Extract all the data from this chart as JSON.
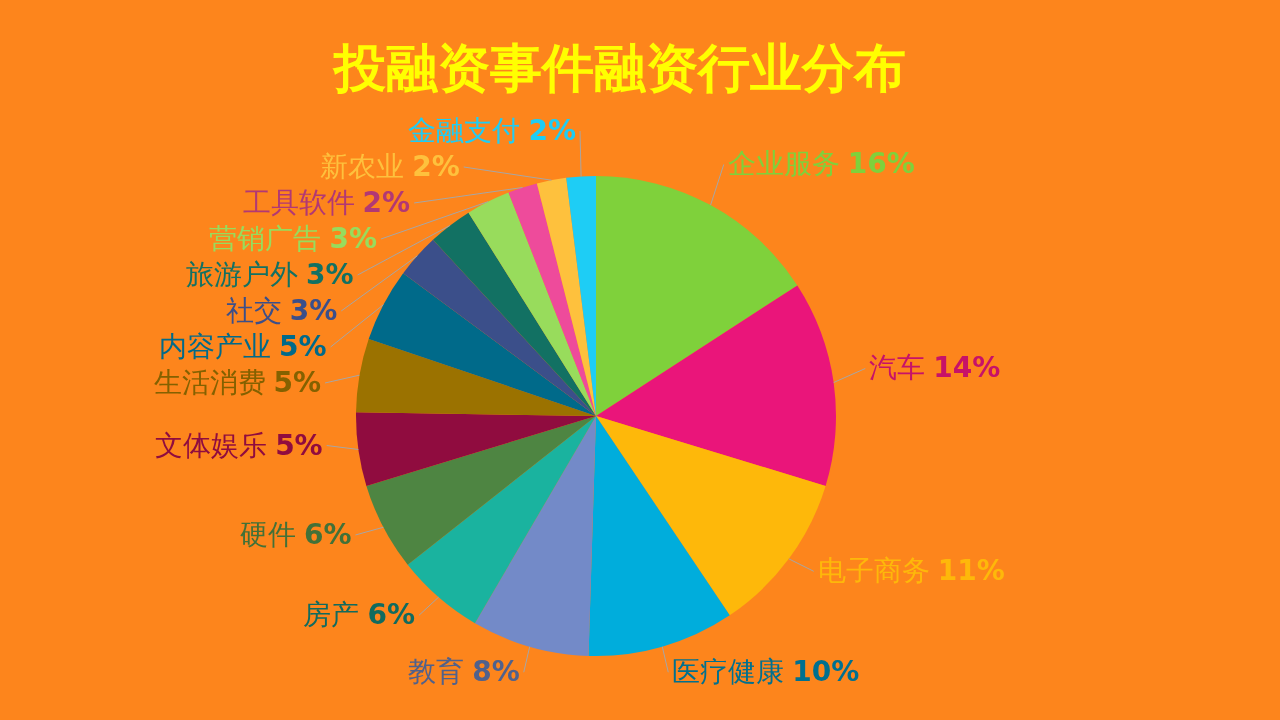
{
  "chart_data": {
    "type": "pie",
    "title": "投融资事件融资行业分布",
    "categories": [
      "企业服务",
      "汽车",
      "电子商务",
      "医疗健康",
      "教育",
      "房产",
      "硬件",
      "文体娱乐",
      "生活消费",
      "内容产业",
      "社交",
      "旅游户外",
      "营销广告",
      "工具软件",
      "新农业",
      "金融支付"
    ],
    "values": [
      16,
      14,
      11,
      10,
      8,
      6,
      6,
      5,
      5,
      5,
      3,
      3,
      3,
      2,
      2,
      2
    ],
    "value_labels": [
      "16%",
      "14%",
      "11%",
      "10%",
      "8%",
      "6%",
      "6%",
      "5%",
      "5%",
      "5%",
      "3%",
      "3%",
      "3%",
      "2%",
      "2%",
      "2%"
    ],
    "colors": [
      "#7fd13b",
      "#ea157a",
      "#feb80a",
      "#00addc",
      "#738ac8",
      "#1ab39f",
      "#4e8542",
      "#900c3f",
      "#9b7200",
      "#006a8a",
      "#3b4f8a",
      "#127163",
      "#98dc5c",
      "#ee4b9b",
      "#fec13d",
      "#1ecdf5"
    ]
  }
}
